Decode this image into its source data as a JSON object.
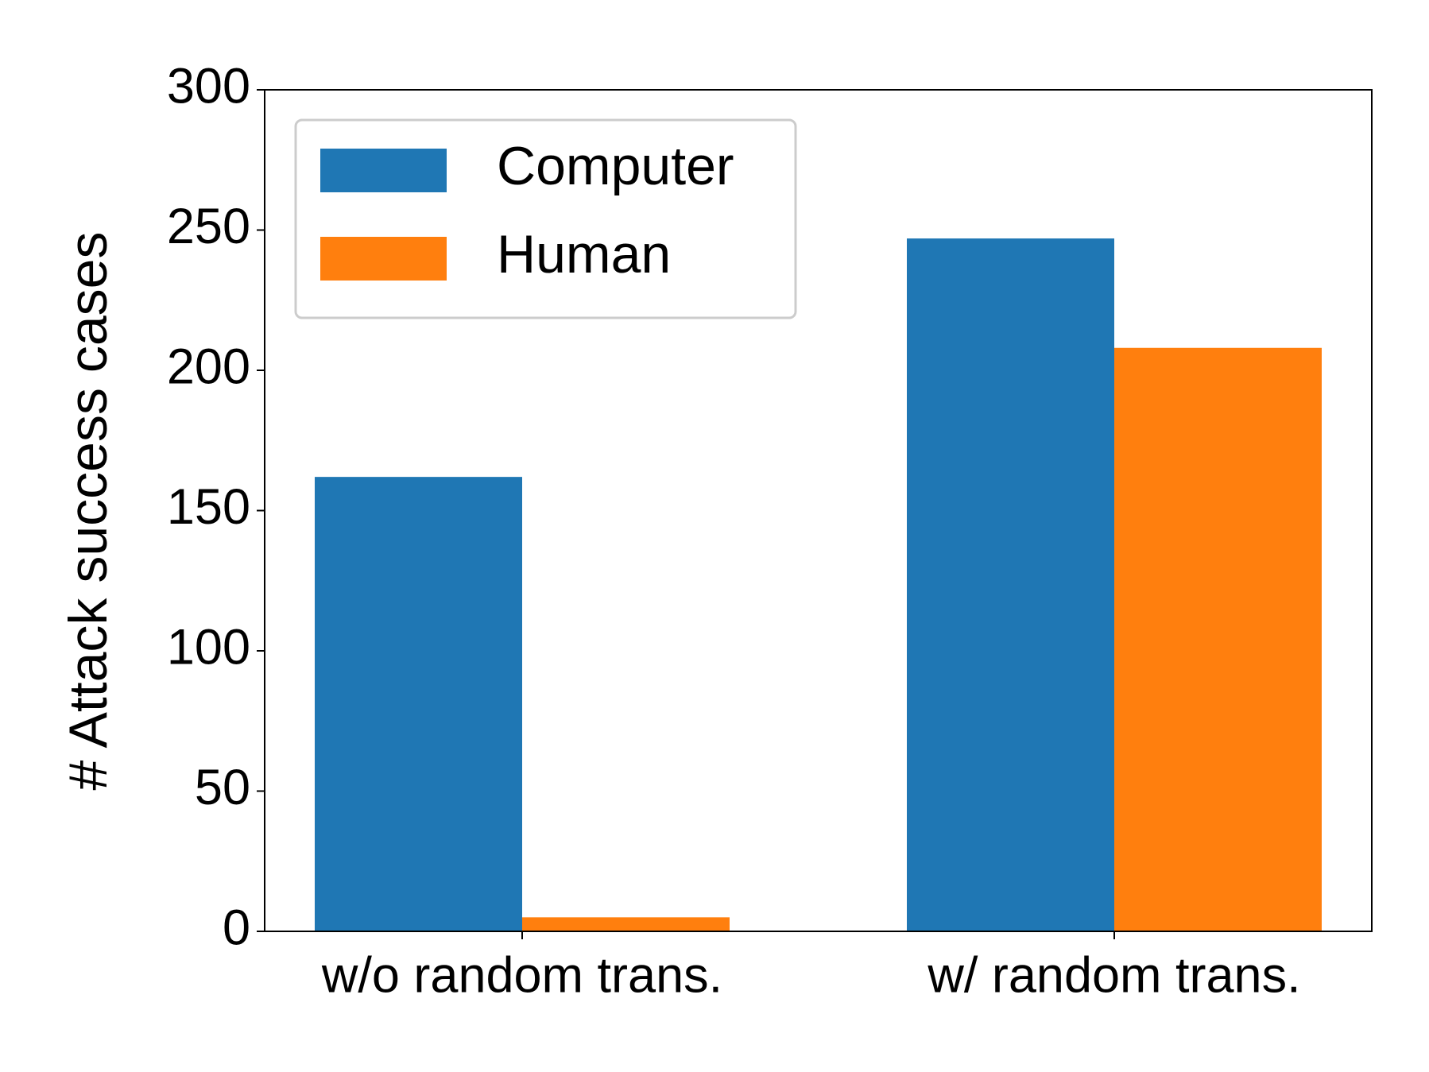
{
  "chart_data": {
    "type": "bar",
    "ylabel": "# Attack success cases",
    "categories": [
      "w/o random trans.",
      "w/ random trans."
    ],
    "series": [
      {
        "name": "Computer",
        "color": "#1f77b4",
        "values": [
          162,
          247
        ]
      },
      {
        "name": "Human",
        "color": "#ff7f0e",
        "values": [
          5,
          208
        ]
      }
    ],
    "ylim": [
      0,
      300
    ],
    "yticks": [
      0,
      50,
      100,
      150,
      200,
      250,
      300
    ],
    "legend": "upper left"
  }
}
